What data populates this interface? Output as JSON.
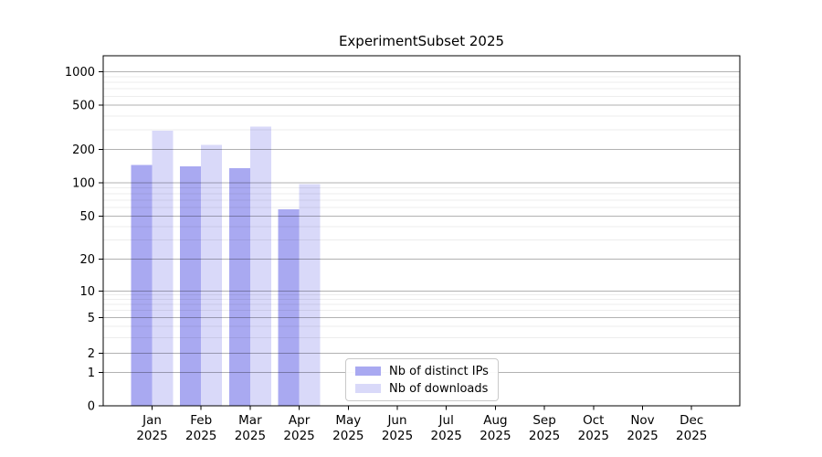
{
  "figure": {
    "title": "ExperimentSubset 2025"
  },
  "legend": {
    "items": [
      {
        "label": "Nb of distinct IPs",
        "color": "#a9a9f1"
      },
      {
        "label": "Nb of downloads",
        "color": "#d9d9f9"
      }
    ]
  },
  "chart_data": {
    "type": "bar",
    "title": "ExperimentSubset 2025",
    "categories": [
      "Jan 2025",
      "Feb 2025",
      "Mar 2025",
      "Apr 2025",
      "May 2025",
      "Jun 2025",
      "Jul 2025",
      "Aug 2025",
      "Sep 2025",
      "Oct 2025",
      "Nov 2025",
      "Dec 2025"
    ],
    "series": [
      {
        "name": "Nb of distinct IPs",
        "color": "#a9a9f1",
        "values": [
          145,
          140,
          135,
          58,
          0,
          0,
          0,
          0,
          0,
          0,
          0,
          0
        ]
      },
      {
        "name": "Nb of downloads",
        "color": "#d9d9f9",
        "values": [
          295,
          220,
          320,
          97,
          0,
          0,
          0,
          0,
          0,
          0,
          0,
          0
        ]
      }
    ],
    "xlabel": "",
    "ylabel": "",
    "yscale": "symlog",
    "yticks": [
      0,
      1,
      2,
      5,
      10,
      20,
      50,
      100,
      200,
      500,
      1000
    ],
    "ylim": [
      0,
      1400
    ],
    "grid": "horizontal major and minor gridlines",
    "legend_position": "inside plot, lower center-left"
  }
}
